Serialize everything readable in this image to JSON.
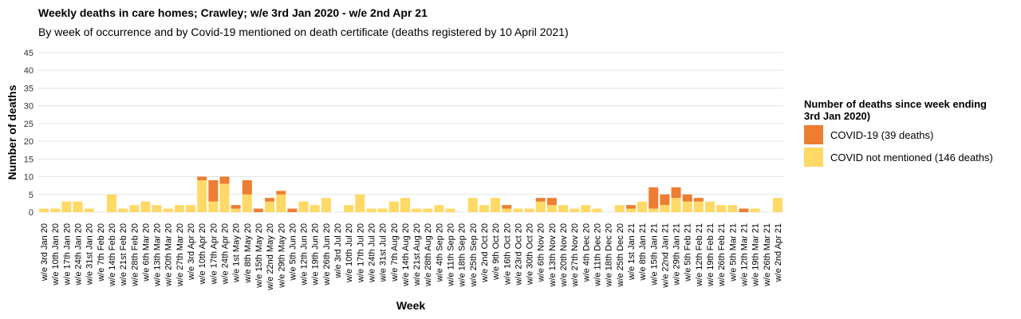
{
  "chart_data": {
    "type": "bar",
    "stacked": true,
    "title": "Weekly deaths in care homes; Crawley; w/e 3rd Jan 2020 - w/e 2nd Apr 21",
    "subtitle": "By week of occurrence and by Covid-19 mentioned on death certificate (deaths registered by 10 April 2021)",
    "xlabel": "Week",
    "ylabel": "Number of deaths",
    "ylim": [
      0,
      45
    ],
    "yticks": [
      0,
      5,
      10,
      15,
      20,
      25,
      30,
      35,
      40,
      45
    ],
    "grid": true,
    "legend_title": "Number of deaths since week ending 3rd Jan 2020)",
    "legend_position": "right",
    "categories": [
      "w/e 3rd Jan 20",
      "w/e 10th Jan 20",
      "w/e 17th Jan 20",
      "w/e 24th Jan 20",
      "w/e 31st Jan 20",
      "w/e 7th Feb 20",
      "w/e 14th Feb 20",
      "w/e 21st Feb 20",
      "w/e 28th Feb 20",
      "w/e 6th Mar 20",
      "w/e 13th Mar 20",
      "w/e 20th Mar 20",
      "w/e 27th Mar 20",
      "w/e 3rd Apr 20",
      "w/e 10th Apr 20",
      "w/e 17th Apr 20",
      "w/e 24th Apr 20",
      "w/e 1st May 20",
      "w/e 8th May 20",
      "w/e 15th May 20",
      "w/e 22nd May 20",
      "w/e 29th May 20",
      "w/e 5th Jun 20",
      "w/e 12th Jun 20",
      "w/e 19th Jun 20",
      "w/e 26th Jun 20",
      "w/e 3rd Jul 20",
      "w/e 10th Jul 20",
      "w/e 17th Jul 20",
      "w/e 24th Jul 20",
      "w/e 31st Jul 20",
      "w/e 7th Aug 20",
      "w/e 14th Aug 20",
      "w/e 21st Aug 20",
      "w/e 28th Aug 20",
      "w/e 4th Sep 20",
      "w/e 11th Sep 20",
      "w/e 18th Sep 20",
      "w/e 25th Sep 20",
      "w/e 2nd Oct 20",
      "w/e 9th Oct 20",
      "w/e 16th Oct 20",
      "w/e 23rd Oct 20",
      "w/e 30th Oct 20",
      "w/e 6th Nov 20",
      "w/e 13th Nov 20",
      "w/e 20th Nov 20",
      "w/e 27th Nov 20",
      "w/e 4th Dec 20",
      "w/e 11th Dec 20",
      "w/e 18th Dec 20",
      "w/e 25th Dec 20",
      "w/e 1st Jan 21",
      "w/e 8th Jan 21",
      "w/e 15th Jan 21",
      "w/e 22nd Jan 21",
      "w/e 29th Jan 21",
      "w/e 5th Feb 21",
      "w/e 12th Feb 21",
      "w/e 19th Feb 21",
      "w/e 26th Feb 21",
      "w/e 5th Mar 21",
      "w/e 12th Mar 21",
      "w/e 19th Mar 21",
      "w/e 26th Mar 21",
      "w/e 2nd Apr 21"
    ],
    "series": [
      {
        "name": "COVID not mentioned (146 deaths)",
        "color": "#ffd966",
        "values": [
          1,
          1,
          3,
          3,
          1,
          0,
          5,
          1,
          2,
          3,
          2,
          1,
          2,
          2,
          9,
          3,
          8,
          1,
          5,
          0,
          3,
          5,
          0,
          3,
          2,
          4,
          0,
          2,
          5,
          1,
          1,
          3,
          4,
          1,
          1,
          2,
          1,
          0,
          4,
          2,
          4,
          1,
          1,
          1,
          3,
          2,
          2,
          1,
          2,
          1,
          0,
          2,
          1,
          3,
          1,
          2,
          4,
          3,
          3,
          3,
          2,
          2,
          0,
          1,
          0,
          4
        ]
      },
      {
        "name": "COVID-19 (39 deaths)",
        "color": "#ed7d31",
        "values": [
          0,
          0,
          0,
          0,
          0,
          0,
          0,
          0,
          0,
          0,
          0,
          0,
          0,
          0,
          1,
          6,
          2,
          1,
          4,
          1,
          1,
          1,
          1,
          0,
          0,
          0,
          0,
          0,
          0,
          0,
          0,
          0,
          0,
          0,
          0,
          0,
          0,
          0,
          0,
          0,
          0,
          1,
          0,
          0,
          1,
          2,
          0,
          0,
          0,
          0,
          0,
          0,
          1,
          0,
          6,
          3,
          3,
          2,
          1,
          0,
          0,
          0,
          1,
          0,
          0,
          0
        ]
      }
    ]
  }
}
